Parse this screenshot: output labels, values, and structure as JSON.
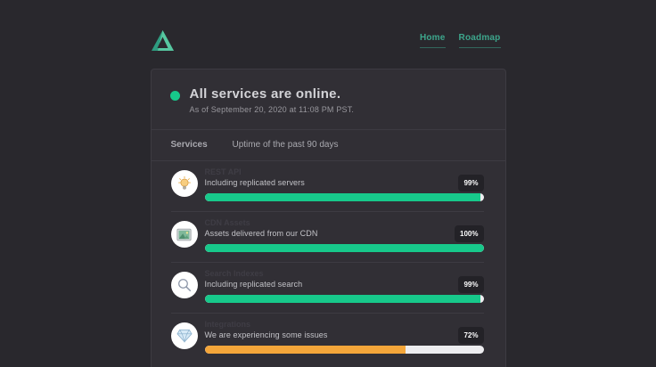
{
  "header": {
    "logo_icon": "triangle-logo-icon",
    "nav": [
      {
        "label": "Home"
      },
      {
        "label": "Roadmap"
      }
    ]
  },
  "status": {
    "heading": "All services are online.",
    "as_of": "As of September 20, 2020 at 11:08 PM PST.",
    "state_color": "#17c98b"
  },
  "table_header": {
    "services": "Services",
    "uptime": "Uptime of the past 90 days"
  },
  "services": [
    {
      "name": "REST API",
      "description": "Including replicated servers",
      "uptime_label": "99%",
      "value": 99,
      "bar_color": "#17c98b",
      "icon": "lightbulb-icon"
    },
    {
      "name": "CDN Assets",
      "description": "Assets delivered from our CDN",
      "uptime_label": "100%",
      "value": 100,
      "bar_color": "#17c98b",
      "icon": "picture-icon"
    },
    {
      "name": "Search Indexes",
      "description": "Including replicated search",
      "uptime_label": "99%",
      "value": 99,
      "bar_color": "#17c98b",
      "icon": "magnifier-icon"
    },
    {
      "name": "Integrations",
      "description": "We are experiencing some issues",
      "uptime_label": "72%",
      "value": 72,
      "bar_color": "#f4a63a",
      "icon": "gem-icon"
    }
  ],
  "colors": {
    "accent_green": "#17c98b",
    "accent_orange": "#f4a63a",
    "nav_link": "#3da68c",
    "bar_track": "#ededf0"
  }
}
